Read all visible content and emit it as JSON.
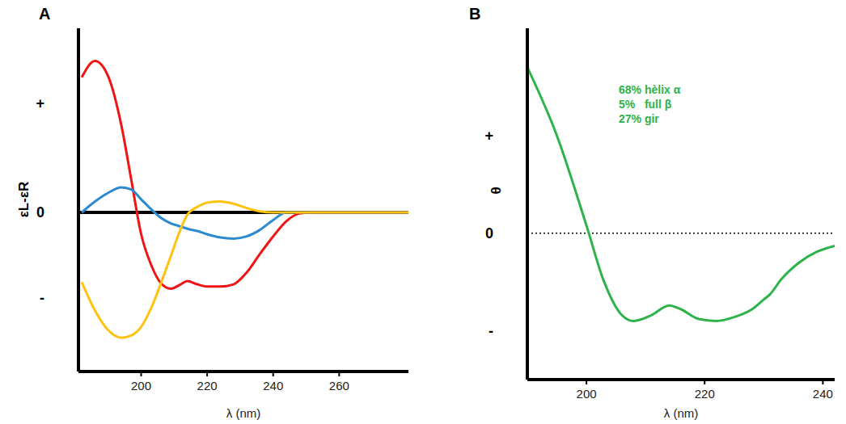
{
  "chart_data": [
    {
      "type": "line",
      "panel_label": "A",
      "x_label": "λ (nm)",
      "y_label": "εL-εR",
      "x": [
        182,
        186,
        190,
        194,
        197,
        200,
        203,
        206,
        209,
        212,
        214,
        217,
        220,
        224,
        228,
        232,
        236,
        240,
        244,
        248,
        252,
        260,
        270,
        281
      ],
      "series": [
        {
          "color": "#f01414",
          "values": [
            1.24,
            1.39,
            1.25,
            0.8,
            0.3,
            -0.2,
            -0.48,
            -0.65,
            -0.7,
            -0.66,
            -0.63,
            -0.66,
            -0.68,
            -0.68,
            -0.66,
            -0.55,
            -0.38,
            -0.22,
            -0.08,
            -0.01,
            0,
            0,
            0,
            0
          ]
        },
        {
          "color": "#2b8ad0",
          "values": [
            0,
            0.1,
            0.18,
            0.23,
            0.21,
            0.12,
            0.03,
            -0.05,
            -0.1,
            -0.13,
            -0.15,
            -0.17,
            -0.2,
            -0.23,
            -0.24,
            -0.22,
            -0.16,
            -0.07,
            0,
            0,
            0,
            0,
            0,
            0
          ]
        },
        {
          "color": "#ffc20e",
          "values": [
            -0.64,
            -0.9,
            -1.08,
            -1.15,
            -1.13,
            -1.05,
            -0.88,
            -0.65,
            -0.4,
            -0.15,
            -0.02,
            0.05,
            0.09,
            0.1,
            0.08,
            0.04,
            0.01,
            0,
            0,
            0,
            0,
            0,
            0,
            0
          ]
        }
      ],
      "xlim": [
        181,
        281
      ],
      "xticks": [
        200,
        220,
        240,
        260
      ],
      "ylim": [
        -1.46,
        1.69
      ],
      "yticks": [
        {
          "value": 1,
          "label": "+"
        },
        0,
        {
          "value": -0.78,
          "label": "-"
        }
      ],
      "grid": false
    },
    {
      "type": "line",
      "panel_label": "B",
      "x_label": "λ (nm)",
      "y_label": "θ",
      "annotations": [
        "68% hèlix α",
        "5%   full β",
        "27% gir"
      ],
      "x": [
        190,
        195,
        200,
        203,
        206,
        208,
        211,
        214,
        216,
        219,
        222,
        225,
        228,
        230,
        231,
        233,
        236,
        239,
        242
      ],
      "series": [
        {
          "color": "#2db34a",
          "values": [
            1.7,
            1.0,
            0.08,
            -0.5,
            -0.84,
            -0.9,
            -0.84,
            -0.74,
            -0.78,
            -0.88,
            -0.9,
            -0.86,
            -0.78,
            -0.68,
            -0.63,
            -0.47,
            -0.3,
            -0.19,
            -0.13
          ]
        }
      ],
      "xlim": [
        190,
        242
      ],
      "xticks": [
        200,
        220,
        240
      ],
      "ylim": [
        -1.5,
        2.1
      ],
      "yticks": [
        {
          "value": 1,
          "label": "+"
        },
        0,
        {
          "value": -1,
          "label": "-"
        }
      ],
      "grid": false
    }
  ]
}
